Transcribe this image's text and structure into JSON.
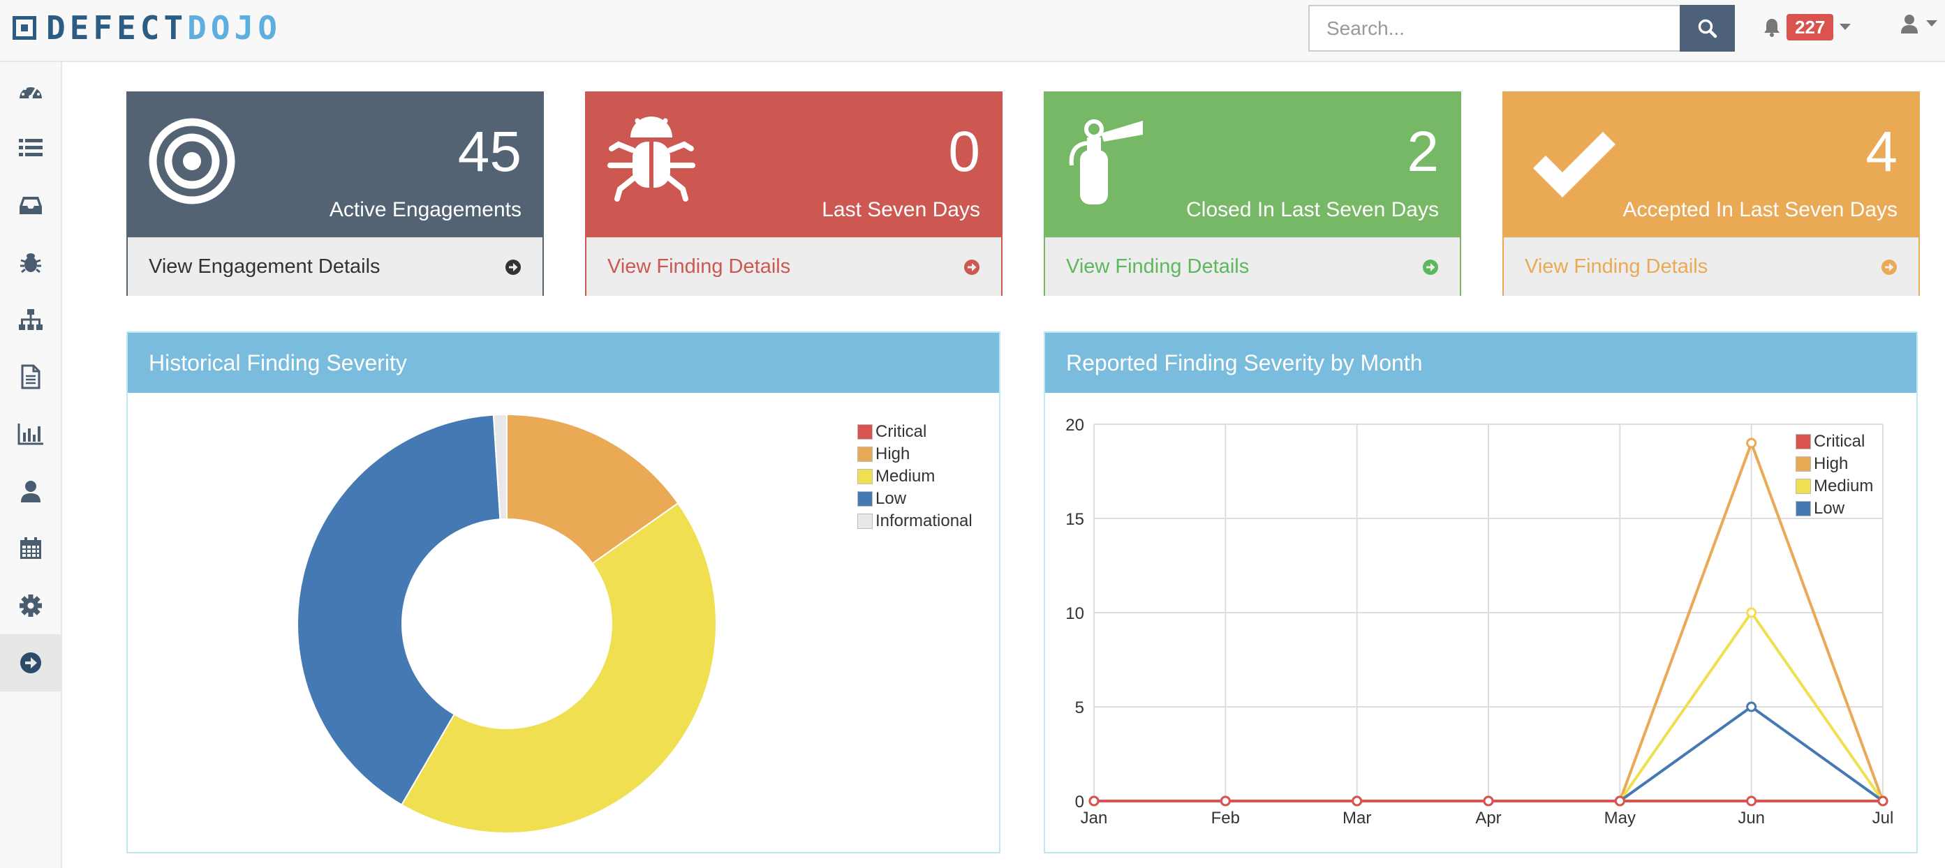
{
  "app": {
    "logo_part1": "DEFECT",
    "logo_part2": "DOJO"
  },
  "navbar": {
    "search_placeholder": "Search...",
    "notification_count": "227"
  },
  "sidebar": {
    "items": [
      {
        "icon": "dashboard-icon"
      },
      {
        "icon": "list-icon"
      },
      {
        "icon": "inbox-icon"
      },
      {
        "icon": "bug-icon"
      },
      {
        "icon": "sitemap-icon"
      },
      {
        "icon": "file-icon"
      },
      {
        "icon": "bar-chart-icon"
      },
      {
        "icon": "user-icon"
      },
      {
        "icon": "calendar-icon"
      },
      {
        "icon": "gear-icon"
      },
      {
        "icon": "arrow-circle-right-icon"
      }
    ]
  },
  "cards": [
    {
      "value": "45",
      "label": "Active Engagements",
      "link": "View Engagement Details",
      "color": "#536373",
      "icon": "target-icon"
    },
    {
      "value": "0",
      "label": "Last Seven Days",
      "link": "View Finding Details",
      "color": "#cc5851",
      "icon": "bug-icon"
    },
    {
      "value": "2",
      "label": "Closed In Last Seven Days",
      "link": "View Finding Details",
      "color": "#76b865",
      "icon": "fire-extinguisher-icon"
    },
    {
      "value": "4",
      "label": "Accepted In Last Seven Days",
      "link": "View Finding Details",
      "color": "#e9a955",
      "icon": "check-icon"
    }
  ],
  "panels": {
    "historical_title": "Historical Finding Severity",
    "monthly_title": "Reported Finding Severity by Month"
  },
  "chart_data": [
    {
      "type": "pie",
      "title": "Historical Finding Severity",
      "labels": [
        "Critical",
        "High",
        "Medium",
        "Low",
        "Informational"
      ],
      "values": [
        0,
        6,
        17,
        16,
        0.4
      ],
      "colors": [
        "#d9534f",
        "#e9a955",
        "#efdf51",
        "#4479b4",
        "#e8e8e8"
      ],
      "donut": true,
      "legend": "top-right"
    },
    {
      "type": "line",
      "title": "Reported Finding Severity by Month",
      "categories": [
        "Jan",
        "Feb",
        "Mar",
        "Apr",
        "May",
        "Jun",
        "Jul"
      ],
      "series": [
        {
          "name": "Critical",
          "values": [
            0,
            0,
            0,
            0,
            0,
            0,
            0
          ],
          "color": "#d9534f"
        },
        {
          "name": "High",
          "values": [
            0,
            0,
            0,
            0,
            0,
            19,
            0
          ],
          "color": "#e9a955"
        },
        {
          "name": "Medium",
          "values": [
            0,
            0,
            0,
            0,
            0,
            10,
            0
          ],
          "color": "#efdf51"
        },
        {
          "name": "Low",
          "values": [
            0,
            0,
            0,
            0,
            0,
            5,
            0
          ],
          "color": "#4479b4"
        }
      ],
      "ylim": [
        0,
        20
      ],
      "yticks": [
        "0",
        "5",
        "10",
        "15",
        "20"
      ],
      "grid": true,
      "legend": "top-right"
    }
  ]
}
